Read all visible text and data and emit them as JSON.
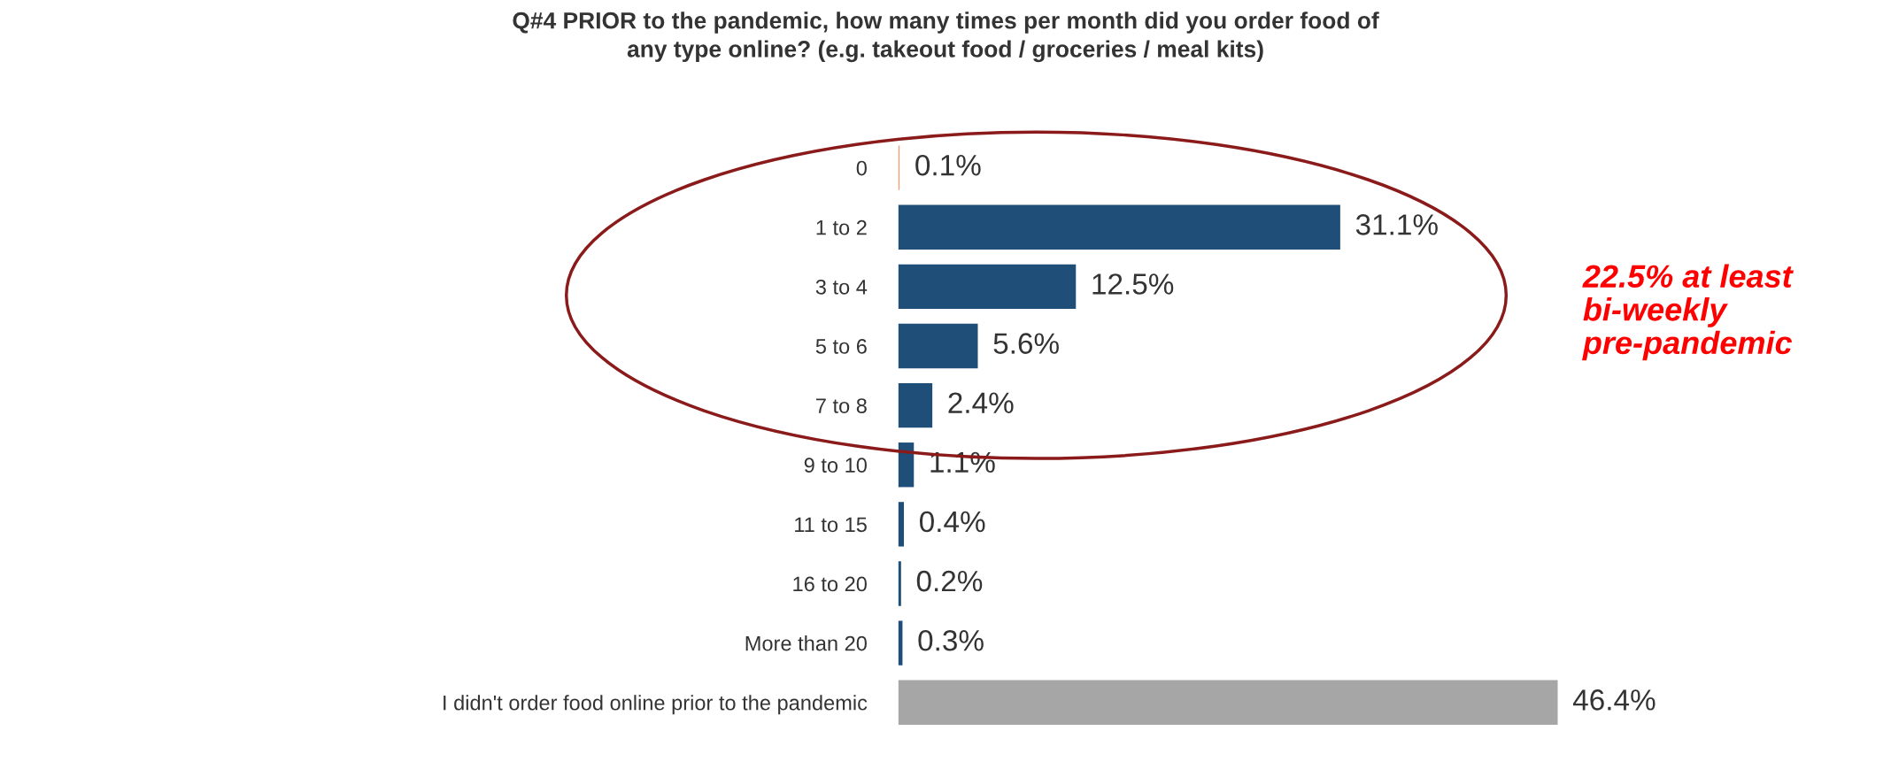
{
  "chart_data": {
    "type": "bar",
    "orientation": "horizontal",
    "title": "Q#4 PRIOR to the pandemic, how many times per month did you order food of\nany type online? (e.g. takeout food / groceries / meal kits)",
    "categories": [
      "0",
      "1 to 2",
      "3 to 4",
      "5 to 6",
      "7 to 8",
      "9 to 10",
      "11 to 15",
      "16 to 20",
      "More than 20",
      "I didn't order food online prior to the pandemic"
    ],
    "values": [
      0.1,
      31.1,
      12.5,
      5.6,
      2.4,
      1.1,
      0.4,
      0.2,
      0.3,
      46.4
    ],
    "colors": [
      "#e8a07a",
      "#1f4e79",
      "#1f4e79",
      "#1f4e79",
      "#1f4e79",
      "#1f4e79",
      "#1f4e79",
      "#1f4e79",
      "#1f4e79",
      "#a6a6a6"
    ],
    "value_labels": [
      "0.1%",
      "31.1%",
      "12.5%",
      "5.6%",
      "2.4%",
      "1.1%",
      "0.4%",
      "0.2%",
      "0.3%",
      "46.4%"
    ],
    "annotations": [
      "22.5% at least\nbi-weekly\npre-pandemic"
    ],
    "grid": false,
    "legend": false
  }
}
